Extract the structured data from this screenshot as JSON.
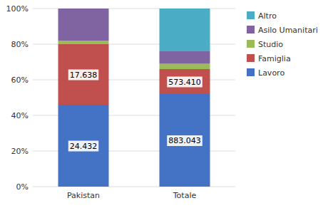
{
  "chart_data": {
    "type": "bar",
    "stacked": true,
    "grid": true,
    "legend": "right",
    "categories": [
      "Pakistan",
      "Totale"
    ],
    "series": [
      {
        "name": "Lavoro",
        "color": "#4472C4",
        "values": [
          0.46,
          0.52
        ]
      },
      {
        "name": "Famiglia",
        "color": "#C0504D",
        "values": [
          0.34,
          0.14
        ]
      },
      {
        "name": "Studio",
        "color": "#9BBB59",
        "values": [
          0.02,
          0.03
        ]
      },
      {
        "name": "Asilo Umanitari",
        "color": "#8064A2",
        "values": [
          0.18,
          0.07
        ]
      },
      {
        "name": "Altro",
        "color": "#4BACC6",
        "values": [
          0.0,
          0.24
        ]
      }
    ],
    "annotations": [
      {
        "text": "24.432",
        "x": "Pakistan",
        "y": 0.23
      },
      {
        "text": "883.043",
        "x": "Totale",
        "y": 0.26
      },
      {
        "text": "17.638",
        "x": "Pakistan",
        "y": 0.63
      },
      {
        "text": "573.410",
        "x": "Totale",
        "y": 0.59
      }
    ],
    "ylim": [
      0,
      1.0
    ],
    "yticks": [
      {
        "value": 0.0,
        "label": "0%"
      },
      {
        "value": 0.2,
        "label": "20%"
      },
      {
        "value": 0.4,
        "label": "40%"
      },
      {
        "value": 0.6,
        "label": "60%"
      },
      {
        "value": 0.8,
        "label": "80%"
      },
      {
        "value": 1.0,
        "label": "100%"
      }
    ]
  }
}
